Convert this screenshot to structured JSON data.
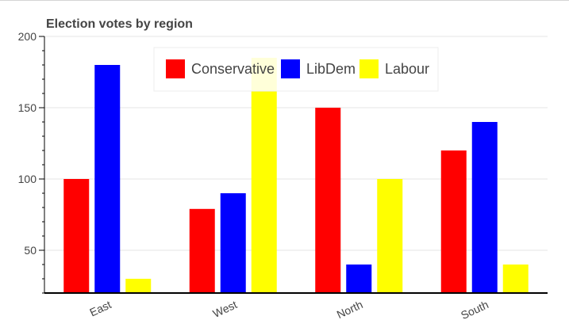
{
  "chart_data": {
    "type": "bar",
    "title": "Election votes by region",
    "xlabel": "",
    "ylabel": "",
    "categories": [
      "East",
      "West",
      "North",
      "South"
    ],
    "series": [
      {
        "name": "Conservative",
        "color": "#ff0000",
        "values": [
          100,
          79,
          150,
          120
        ]
      },
      {
        "name": "LibDem",
        "color": "#0000ff",
        "values": [
          180,
          90,
          40,
          140
        ]
      },
      {
        "name": "Labour",
        "color": "#ffff00",
        "values": [
          30,
          185,
          100,
          40
        ]
      }
    ],
    "ylim": [
      20,
      200
    ],
    "yticks": [
      50,
      100,
      150,
      200
    ],
    "grid": true,
    "legend_position": "top-center"
  }
}
